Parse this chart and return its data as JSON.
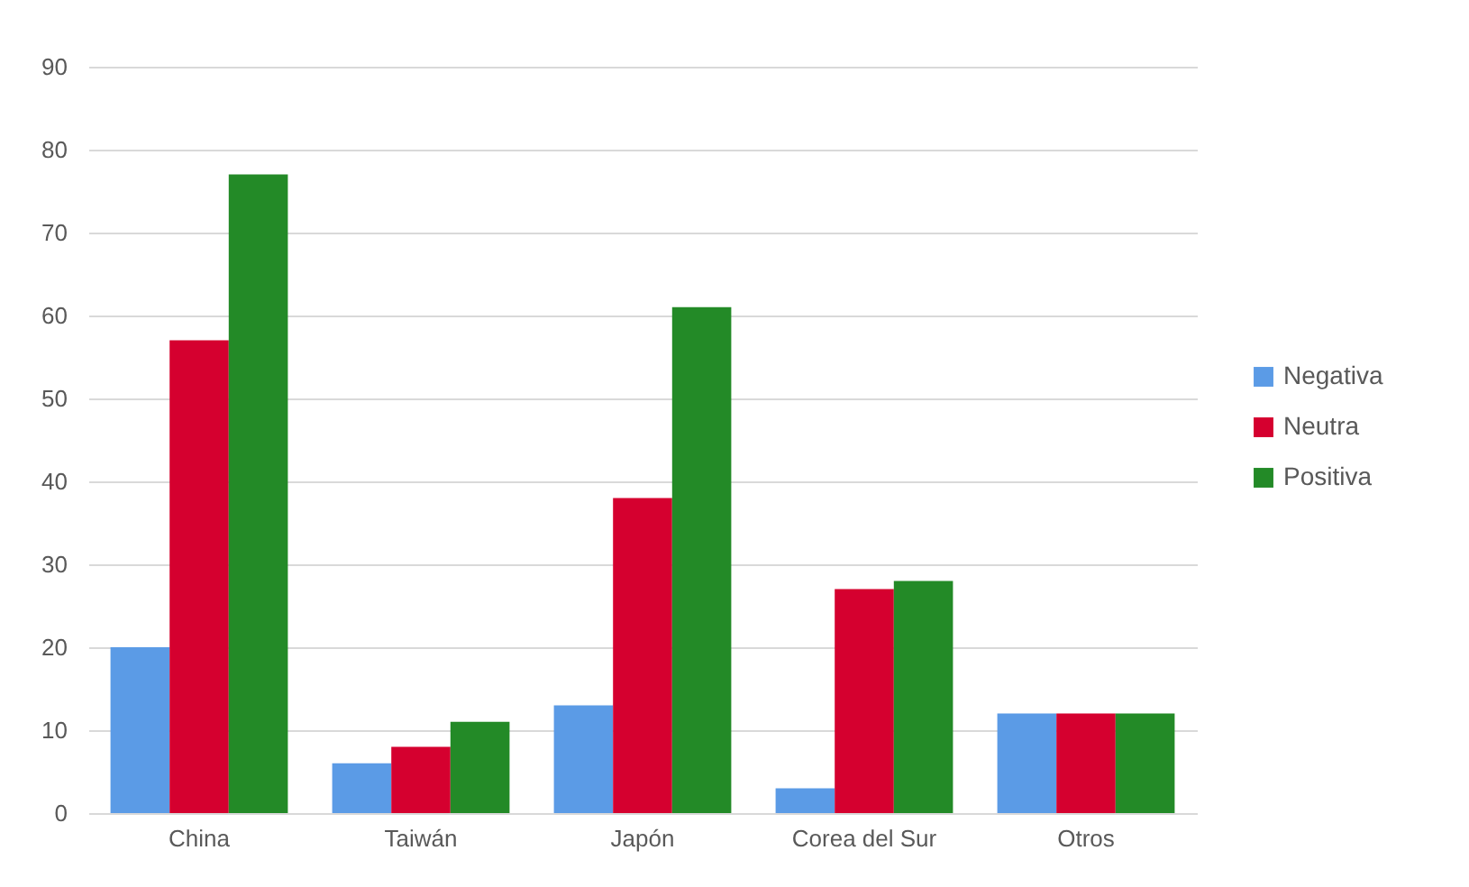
{
  "chart_data": {
    "type": "bar",
    "categories": [
      "China",
      "Taiwán",
      "Japón",
      "Corea del Sur",
      "Otros"
    ],
    "series": [
      {
        "name": "Negativa",
        "color": "#5b9be6",
        "values": [
          20,
          6,
          13,
          3,
          12
        ]
      },
      {
        "name": "Neutra",
        "color": "#d5002f",
        "values": [
          57,
          8,
          38,
          27,
          12
        ]
      },
      {
        "name": "Positiva",
        "color": "#238a27",
        "values": [
          77,
          11,
          61,
          28,
          12
        ]
      }
    ],
    "ylim": [
      0,
      90
    ],
    "yticks": [
      0,
      10,
      20,
      30,
      40,
      50,
      60,
      70,
      80,
      90
    ],
    "grid": "y",
    "legend": "right"
  }
}
